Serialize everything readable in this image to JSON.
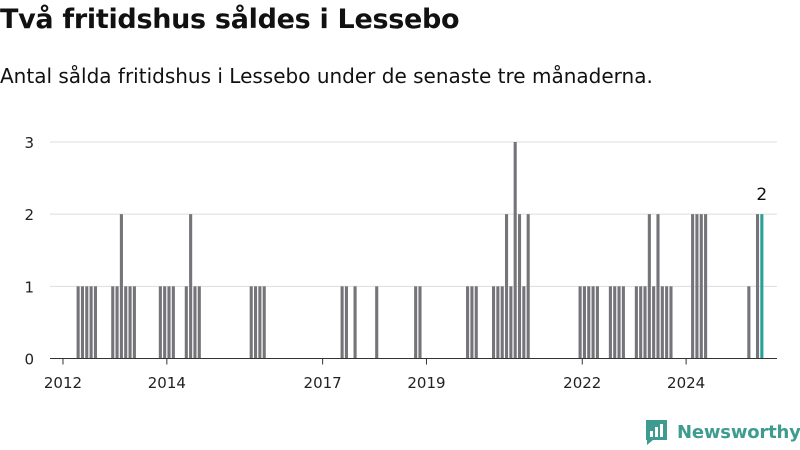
{
  "header": {
    "title": "Två fritidshus såldes i Lessebo",
    "subtitle": "Antal sålda fritidshus i Lessebo under de senaste tre månaderna."
  },
  "branding": {
    "logo_text": "Newsworthy",
    "color": "#3d9c8f"
  },
  "colors": {
    "bar": "#747479",
    "highlight": "#2aa198",
    "grid": "#dddddd",
    "axis": "#333333"
  },
  "chart_data": {
    "type": "bar",
    "title": "Två fritidshus såldes i Lessebo",
    "subtitle": "Antal sålda fritidshus i Lessebo under de senaste tre månaderna.",
    "xlabel": "",
    "ylabel": "",
    "ylim": [
      0,
      3
    ],
    "yticks": [
      0,
      1,
      2,
      3
    ],
    "xlim": [
      "2011-10",
      "2025-10"
    ],
    "xticks": [
      "2012",
      "2014",
      "2017",
      "2019",
      "2022",
      "2024"
    ],
    "grid": true,
    "legend": "none",
    "highlight_label": "2",
    "points": [
      {
        "x": "2012-04",
        "y": 1
      },
      {
        "x": "2012-05",
        "y": 1
      },
      {
        "x": "2012-06",
        "y": 1
      },
      {
        "x": "2012-07",
        "y": 1
      },
      {
        "x": "2012-08",
        "y": 1
      },
      {
        "x": "2012-12",
        "y": 1
      },
      {
        "x": "2013-01",
        "y": 1
      },
      {
        "x": "2013-02",
        "y": 2
      },
      {
        "x": "2013-03",
        "y": 1
      },
      {
        "x": "2013-04",
        "y": 1
      },
      {
        "x": "2013-05",
        "y": 1
      },
      {
        "x": "2013-11",
        "y": 1
      },
      {
        "x": "2013-12",
        "y": 1
      },
      {
        "x": "2014-01",
        "y": 1
      },
      {
        "x": "2014-02",
        "y": 1
      },
      {
        "x": "2014-05",
        "y": 1
      },
      {
        "x": "2014-06",
        "y": 2
      },
      {
        "x": "2014-07",
        "y": 1
      },
      {
        "x": "2014-08",
        "y": 1
      },
      {
        "x": "2015-08",
        "y": 1
      },
      {
        "x": "2015-09",
        "y": 1
      },
      {
        "x": "2015-10",
        "y": 1
      },
      {
        "x": "2015-11",
        "y": 1
      },
      {
        "x": "2017-05",
        "y": 1
      },
      {
        "x": "2017-06",
        "y": 1
      },
      {
        "x": "2017-08",
        "y": 1
      },
      {
        "x": "2018-01",
        "y": 1
      },
      {
        "x": "2018-10",
        "y": 1
      },
      {
        "x": "2018-11",
        "y": 1
      },
      {
        "x": "2019-10",
        "y": 1
      },
      {
        "x": "2019-11",
        "y": 1
      },
      {
        "x": "2019-12",
        "y": 1
      },
      {
        "x": "2020-04",
        "y": 1
      },
      {
        "x": "2020-05",
        "y": 1
      },
      {
        "x": "2020-06",
        "y": 1
      },
      {
        "x": "2020-07",
        "y": 2
      },
      {
        "x": "2020-08",
        "y": 1
      },
      {
        "x": "2020-09",
        "y": 3
      },
      {
        "x": "2020-10",
        "y": 2
      },
      {
        "x": "2020-11",
        "y": 1
      },
      {
        "x": "2020-12",
        "y": 2
      },
      {
        "x": "2021-12",
        "y": 1
      },
      {
        "x": "2022-01",
        "y": 1
      },
      {
        "x": "2022-02",
        "y": 1
      },
      {
        "x": "2022-03",
        "y": 1
      },
      {
        "x": "2022-04",
        "y": 1
      },
      {
        "x": "2022-07",
        "y": 1
      },
      {
        "x": "2022-08",
        "y": 1
      },
      {
        "x": "2022-09",
        "y": 1
      },
      {
        "x": "2022-10",
        "y": 1
      },
      {
        "x": "2023-01",
        "y": 1
      },
      {
        "x": "2023-02",
        "y": 1
      },
      {
        "x": "2023-03",
        "y": 1
      },
      {
        "x": "2023-04",
        "y": 2
      },
      {
        "x": "2023-05",
        "y": 1
      },
      {
        "x": "2023-06",
        "y": 2
      },
      {
        "x": "2023-07",
        "y": 1
      },
      {
        "x": "2023-08",
        "y": 1
      },
      {
        "x": "2023-09",
        "y": 1
      },
      {
        "x": "2024-02",
        "y": 2
      },
      {
        "x": "2024-03",
        "y": 2
      },
      {
        "x": "2024-04",
        "y": 2
      },
      {
        "x": "2024-05",
        "y": 2
      },
      {
        "x": "2025-03",
        "y": 1
      },
      {
        "x": "2025-05",
        "y": 2
      },
      {
        "x": "2025-06",
        "y": 2,
        "highlight": true
      }
    ]
  }
}
